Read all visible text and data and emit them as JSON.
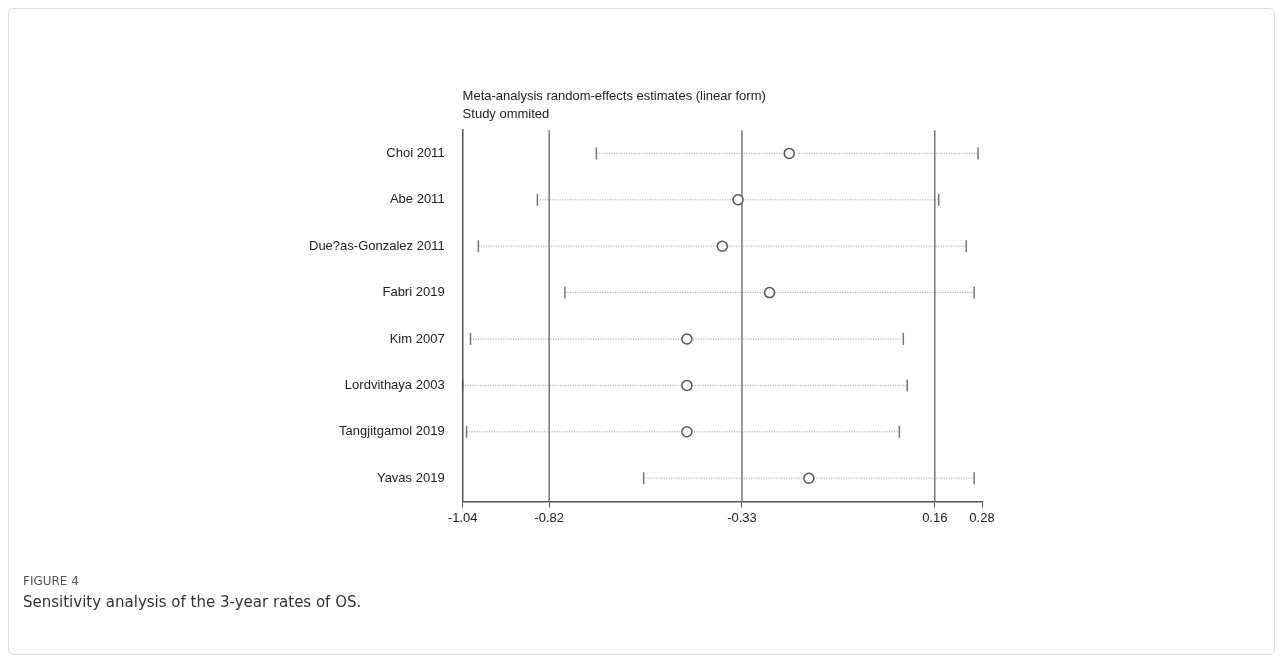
{
  "chart_data": {
    "type": "scatter",
    "title": "Meta-analysis random-effects estimates (linear form)",
    "subtitle": "Study ommited",
    "orientation": "horizontal",
    "categories": [
      "Choi 2011",
      "Abe 2011",
      "Due?as-Gonzalez 2011",
      "Fabri 2019",
      "Kim 2007",
      "Lordvithaya 2003",
      "Tangjitgamol 2019",
      "Yavas 2019"
    ],
    "values": [
      -0.21,
      -0.34,
      -0.38,
      -0.26,
      -0.47,
      -0.47,
      -0.47,
      -0.16
    ],
    "errors": [
      [
        -0.7,
        0.27
      ],
      [
        -0.85,
        0.17
      ],
      [
        -1.0,
        0.24
      ],
      [
        -0.78,
        0.26
      ],
      [
        -1.02,
        0.08
      ],
      [
        -1.04,
        0.09
      ],
      [
        -1.03,
        0.07
      ],
      [
        -0.58,
        0.26
      ]
    ],
    "color": "#555555",
    "marker": "circle",
    "xlim": [
      -1.04,
      0.28
    ],
    "xticks": [
      -1.04,
      -0.82,
      -0.33,
      0.16,
      0.28
    ],
    "ref_lines": [
      {
        "axis": "x",
        "value": -0.82,
        "color": "#777777"
      },
      {
        "axis": "x",
        "value": -0.33,
        "color": "#777777"
      },
      {
        "axis": "x",
        "value": 0.16,
        "color": "#777777"
      }
    ],
    "annotations": [
      "FIGURE 4",
      "Sensitivity analysis of the 3-year rates of OS."
    ]
  }
}
